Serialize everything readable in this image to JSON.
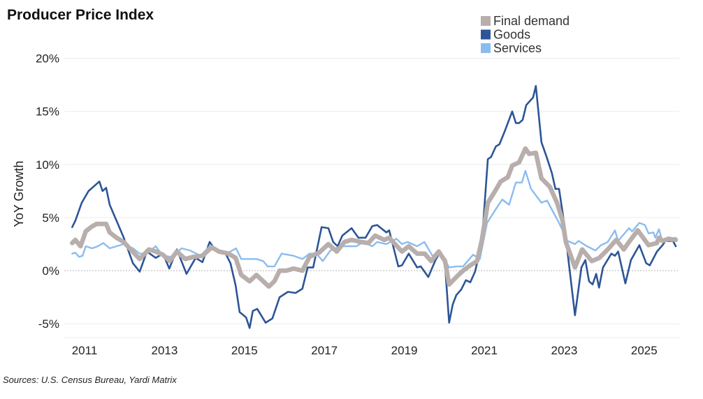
{
  "chart_data": {
    "type": "line",
    "title": "Producer Price Index",
    "ylabel": "YoY Growth",
    "xlabel": "",
    "source": "Sources: U.S. Census Bureau, Yardi Matrix",
    "ylim": [
      -5,
      20
    ],
    "xlim": [
      2010.6,
      2026.0
    ],
    "y_ticks": [
      "20%",
      "15%",
      "10%",
      "5%",
      "0%",
      "-5%"
    ],
    "y_tick_values": [
      20,
      15,
      10,
      5,
      0,
      -5
    ],
    "x_ticks": [
      "2011",
      "2013",
      "2015",
      "2017",
      "2019",
      "2021",
      "2023",
      "2025"
    ],
    "x_tick_values": [
      2011,
      2013,
      2015,
      2017,
      2019,
      2021,
      2023,
      2025
    ],
    "grid": "horizontal",
    "legend_position": "top-right",
    "series": [
      {
        "name": "Goods",
        "color": "#2d5597",
        "points": [
          [
            2010.69,
            4.1
          ],
          [
            2010.77,
            4.7
          ],
          [
            2010.93,
            6.4
          ],
          [
            2011.1,
            7.5
          ],
          [
            2011.37,
            8.4
          ],
          [
            2011.45,
            7.5
          ],
          [
            2011.54,
            7.8
          ],
          [
            2011.63,
            6.2
          ],
          [
            2011.8,
            4.7
          ],
          [
            2011.98,
            3.1
          ],
          [
            2012.21,
            0.7
          ],
          [
            2012.38,
            -0.1
          ],
          [
            2012.56,
            1.8
          ],
          [
            2012.78,
            1.2
          ],
          [
            2012.96,
            1.6
          ],
          [
            2013.12,
            0.2
          ],
          [
            2013.31,
            2.0
          ],
          [
            2013.55,
            -0.3
          ],
          [
            2013.78,
            1.2
          ],
          [
            2013.95,
            0.8
          ],
          [
            2014.13,
            2.7
          ],
          [
            2014.3,
            1.8
          ],
          [
            2014.53,
            1.6
          ],
          [
            2014.65,
            0.7
          ],
          [
            2014.78,
            -1.4
          ],
          [
            2014.88,
            -3.9
          ],
          [
            2015.04,
            -4.4
          ],
          [
            2015.13,
            -5.4
          ],
          [
            2015.21,
            -3.8
          ],
          [
            2015.32,
            -3.6
          ],
          [
            2015.53,
            -4.9
          ],
          [
            2015.7,
            -4.5
          ],
          [
            2015.88,
            -2.5
          ],
          [
            2016.09,
            -2.0
          ],
          [
            2016.28,
            -2.1
          ],
          [
            2016.45,
            -1.7
          ],
          [
            2016.58,
            0.3
          ],
          [
            2016.72,
            0.3
          ],
          [
            2016.93,
            4.1
          ],
          [
            2017.1,
            4.0
          ],
          [
            2017.22,
            2.7
          ],
          [
            2017.33,
            2.3
          ],
          [
            2017.45,
            3.3
          ],
          [
            2017.68,
            4.0
          ],
          [
            2017.85,
            3.1
          ],
          [
            2018.03,
            3.1
          ],
          [
            2018.2,
            4.2
          ],
          [
            2018.32,
            4.3
          ],
          [
            2018.55,
            3.6
          ],
          [
            2018.62,
            3.8
          ],
          [
            2018.85,
            0.4
          ],
          [
            2018.94,
            0.5
          ],
          [
            2019.11,
            1.6
          ],
          [
            2019.32,
            0.3
          ],
          [
            2019.41,
            0.4
          ],
          [
            2019.6,
            -0.6
          ],
          [
            2019.78,
            1.0
          ],
          [
            2019.9,
            1.8
          ],
          [
            2020.02,
            0.5
          ],
          [
            2020.12,
            -4.9
          ],
          [
            2020.21,
            -3.2
          ],
          [
            2020.3,
            -2.3
          ],
          [
            2020.42,
            -1.8
          ],
          [
            2020.54,
            -0.9
          ],
          [
            2020.65,
            -1.1
          ],
          [
            2020.77,
            -0.1
          ],
          [
            2020.94,
            2.7
          ],
          [
            2021.09,
            10.5
          ],
          [
            2021.17,
            10.7
          ],
          [
            2021.29,
            11.7
          ],
          [
            2021.38,
            11.9
          ],
          [
            2021.52,
            13.2
          ],
          [
            2021.7,
            15.0
          ],
          [
            2021.79,
            13.9
          ],
          [
            2021.87,
            13.9
          ],
          [
            2021.96,
            14.2
          ],
          [
            2022.05,
            15.6
          ],
          [
            2022.17,
            16.1
          ],
          [
            2022.22,
            16.3
          ],
          [
            2022.29,
            17.4
          ],
          [
            2022.43,
            12.1
          ],
          [
            2022.57,
            10.6
          ],
          [
            2022.69,
            9.2
          ],
          [
            2022.78,
            7.7
          ],
          [
            2022.87,
            7.7
          ],
          [
            2022.99,
            4.7
          ],
          [
            2023.1,
            1.2
          ],
          [
            2023.27,
            -4.2
          ],
          [
            2023.43,
            0.3
          ],
          [
            2023.53,
            1.0
          ],
          [
            2023.62,
            -1.0
          ],
          [
            2023.71,
            -1.3
          ],
          [
            2023.8,
            -0.3
          ],
          [
            2023.87,
            -1.6
          ],
          [
            2023.97,
            0.3
          ],
          [
            2024.18,
            1.6
          ],
          [
            2024.27,
            1.4
          ],
          [
            2024.35,
            1.8
          ],
          [
            2024.53,
            -1.2
          ],
          [
            2024.67,
            1.0
          ],
          [
            2024.88,
            2.4
          ],
          [
            2025.05,
            0.7
          ],
          [
            2025.14,
            0.5
          ],
          [
            2025.32,
            1.8
          ],
          [
            2025.46,
            2.4
          ],
          [
            2025.53,
            2.8
          ],
          [
            2025.72,
            2.8
          ],
          [
            2025.79,
            2.3
          ]
        ]
      },
      {
        "name": "Services",
        "color": "#8bbcf0",
        "points": [
          [
            2010.69,
            1.6
          ],
          [
            2010.77,
            1.7
          ],
          [
            2010.86,
            1.3
          ],
          [
            2010.95,
            1.4
          ],
          [
            2011.03,
            2.3
          ],
          [
            2011.19,
            2.1
          ],
          [
            2011.33,
            2.3
          ],
          [
            2011.47,
            2.6
          ],
          [
            2011.63,
            2.1
          ],
          [
            2011.8,
            2.3
          ],
          [
            2011.98,
            2.5
          ],
          [
            2012.21,
            2.1
          ],
          [
            2012.38,
            1.6
          ],
          [
            2012.56,
            1.6
          ],
          [
            2012.78,
            2.3
          ],
          [
            2012.96,
            1.4
          ],
          [
            2013.17,
            1.3
          ],
          [
            2013.43,
            2.1
          ],
          [
            2013.64,
            1.9
          ],
          [
            2013.9,
            1.4
          ],
          [
            2014.13,
            2.3
          ],
          [
            2014.36,
            1.8
          ],
          [
            2014.6,
            1.7
          ],
          [
            2014.79,
            2.1
          ],
          [
            2014.92,
            1.1
          ],
          [
            2015.13,
            1.1
          ],
          [
            2015.3,
            1.1
          ],
          [
            2015.47,
            0.9
          ],
          [
            2015.58,
            0.4
          ],
          [
            2015.75,
            0.4
          ],
          [
            2015.93,
            1.6
          ],
          [
            2016.23,
            1.4
          ],
          [
            2016.45,
            1.1
          ],
          [
            2016.63,
            1.6
          ],
          [
            2016.8,
            1.6
          ],
          [
            2016.96,
            0.9
          ],
          [
            2017.15,
            1.9
          ],
          [
            2017.4,
            2.3
          ],
          [
            2017.57,
            2.3
          ],
          [
            2017.8,
            2.3
          ],
          [
            2017.97,
            2.7
          ],
          [
            2018.2,
            2.3
          ],
          [
            2018.32,
            2.7
          ],
          [
            2018.55,
            2.5
          ],
          [
            2018.8,
            3.0
          ],
          [
            2018.94,
            2.5
          ],
          [
            2019.08,
            2.7
          ],
          [
            2019.32,
            2.3
          ],
          [
            2019.5,
            2.7
          ],
          [
            2019.72,
            1.3
          ],
          [
            2019.9,
            1.8
          ],
          [
            2020.12,
            0.3
          ],
          [
            2020.3,
            0.4
          ],
          [
            2020.47,
            0.4
          ],
          [
            2020.72,
            1.5
          ],
          [
            2020.89,
            1.1
          ],
          [
            2021.07,
            4.5
          ],
          [
            2021.29,
            5.8
          ],
          [
            2021.45,
            6.7
          ],
          [
            2021.62,
            6.2
          ],
          [
            2021.79,
            8.3
          ],
          [
            2021.94,
            8.3
          ],
          [
            2022.03,
            9.4
          ],
          [
            2022.17,
            7.7
          ],
          [
            2022.43,
            6.4
          ],
          [
            2022.57,
            6.6
          ],
          [
            2022.87,
            4.5
          ],
          [
            2023.08,
            2.8
          ],
          [
            2023.27,
            2.5
          ],
          [
            2023.36,
            2.8
          ],
          [
            2023.57,
            2.3
          ],
          [
            2023.78,
            1.9
          ],
          [
            2023.92,
            2.4
          ],
          [
            2024.09,
            2.7
          ],
          [
            2024.27,
            3.8
          ],
          [
            2024.35,
            2.8
          ],
          [
            2024.62,
            4.0
          ],
          [
            2024.7,
            3.7
          ],
          [
            2024.88,
            4.5
          ],
          [
            2025.02,
            4.3
          ],
          [
            2025.11,
            3.5
          ],
          [
            2025.23,
            3.6
          ],
          [
            2025.28,
            3.1
          ],
          [
            2025.37,
            3.9
          ],
          [
            2025.46,
            2.7
          ],
          [
            2025.67,
            3.0
          ],
          [
            2025.79,
            3.1
          ]
        ]
      },
      {
        "name": "Final demand",
        "color": "#b8aeab",
        "points": [
          [
            2010.69,
            2.6
          ],
          [
            2010.77,
            2.9
          ],
          [
            2010.9,
            2.3
          ],
          [
            2011.03,
            3.7
          ],
          [
            2011.16,
            4.1
          ],
          [
            2011.3,
            4.4
          ],
          [
            2011.54,
            4.4
          ],
          [
            2011.63,
            3.6
          ],
          [
            2011.8,
            3.1
          ],
          [
            2011.98,
            2.7
          ],
          [
            2012.15,
            2.0
          ],
          [
            2012.38,
            1.1
          ],
          [
            2012.61,
            2.0
          ],
          [
            2012.78,
            1.8
          ],
          [
            2012.96,
            1.5
          ],
          [
            2013.13,
            0.9
          ],
          [
            2013.31,
            1.8
          ],
          [
            2013.52,
            1.1
          ],
          [
            2013.73,
            1.3
          ],
          [
            2013.95,
            1.4
          ],
          [
            2014.18,
            2.2
          ],
          [
            2014.36,
            1.8
          ],
          [
            2014.6,
            1.6
          ],
          [
            2014.78,
            1.2
          ],
          [
            2014.92,
            -0.4
          ],
          [
            2015.13,
            -1.0
          ],
          [
            2015.3,
            -0.4
          ],
          [
            2015.47,
            -1.0
          ],
          [
            2015.61,
            -1.5
          ],
          [
            2015.75,
            -1.0
          ],
          [
            2015.88,
            0.0
          ],
          [
            2016.05,
            0.0
          ],
          [
            2016.23,
            0.2
          ],
          [
            2016.45,
            0.0
          ],
          [
            2016.63,
            1.3
          ],
          [
            2016.87,
            1.7
          ],
          [
            2017.1,
            2.5
          ],
          [
            2017.31,
            1.8
          ],
          [
            2017.5,
            2.7
          ],
          [
            2017.68,
            2.9
          ],
          [
            2017.92,
            2.7
          ],
          [
            2018.1,
            2.6
          ],
          [
            2018.27,
            3.3
          ],
          [
            2018.5,
            2.9
          ],
          [
            2018.62,
            3.1
          ],
          [
            2018.94,
            1.8
          ],
          [
            2019.11,
            2.3
          ],
          [
            2019.32,
            1.6
          ],
          [
            2019.51,
            1.6
          ],
          [
            2019.67,
            0.9
          ],
          [
            2019.86,
            1.8
          ],
          [
            2020.02,
            0.9
          ],
          [
            2020.12,
            -1.3
          ],
          [
            2020.3,
            -0.6
          ],
          [
            2020.47,
            0.0
          ],
          [
            2020.65,
            0.5
          ],
          [
            2020.82,
            0.9
          ],
          [
            2020.94,
            2.9
          ],
          [
            2021.09,
            6.4
          ],
          [
            2021.24,
            7.3
          ],
          [
            2021.41,
            8.4
          ],
          [
            2021.59,
            8.8
          ],
          [
            2021.7,
            9.9
          ],
          [
            2021.87,
            10.2
          ],
          [
            2022.03,
            11.5
          ],
          [
            2022.12,
            11.0
          ],
          [
            2022.29,
            11.1
          ],
          [
            2022.43,
            8.7
          ],
          [
            2022.64,
            7.9
          ],
          [
            2022.82,
            6.4
          ],
          [
            2022.96,
            4.7
          ],
          [
            2023.04,
            2.7
          ],
          [
            2023.27,
            0.3
          ],
          [
            2023.45,
            2.0
          ],
          [
            2023.69,
            0.9
          ],
          [
            2023.88,
            1.2
          ],
          [
            2024.09,
            2.0
          ],
          [
            2024.3,
            2.9
          ],
          [
            2024.49,
            2.0
          ],
          [
            2024.62,
            2.7
          ],
          [
            2024.84,
            3.8
          ],
          [
            2025.11,
            2.4
          ],
          [
            2025.32,
            2.6
          ],
          [
            2025.37,
            3.1
          ],
          [
            2025.46,
            2.8
          ],
          [
            2025.61,
            3.0
          ],
          [
            2025.79,
            2.9
          ]
        ]
      }
    ]
  }
}
